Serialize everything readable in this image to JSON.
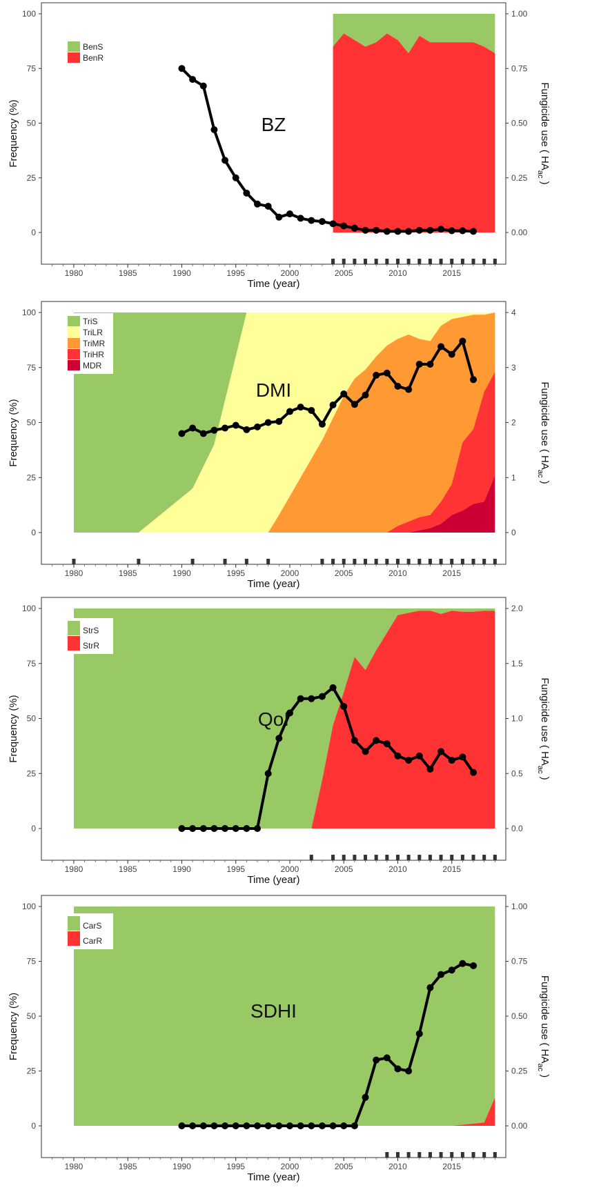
{
  "chart_data": [
    {
      "type": "area",
      "label": "BZ",
      "xlabel": "Time (year)",
      "ylabel": "Frequency (%)",
      "ylabel_right": "Fungicide use ( HA",
      "ylabel_right_sub": "ac",
      "ylabel_right_end": " )",
      "xlim": [
        1977,
        2020
      ],
      "xticks": [
        1980,
        1985,
        1990,
        1995,
        2000,
        2005,
        2010,
        2015
      ],
      "ylim": [
        0,
        100
      ],
      "yticks": [
        0,
        25,
        50,
        75,
        100
      ],
      "ylim_right": [
        0,
        1
      ],
      "yticks_right": [
        "0.00",
        "0.25",
        "0.50",
        "0.75",
        "1.00"
      ],
      "grid": false,
      "legend_position": "top-left",
      "area_series": [
        {
          "name": "BenS",
          "color": "#99c965"
        },
        {
          "name": "BenR",
          "color": "#ff3333"
        }
      ],
      "area_x": [
        2004,
        2005,
        2006,
        2007,
        2008,
        2009,
        2010,
        2011,
        2012,
        2013,
        2014,
        2015,
        2016,
        2017,
        2018,
        2019
      ],
      "area_cumulative": [
        [
          100,
          100,
          100,
          100,
          100,
          100,
          100,
          100,
          100,
          100,
          100,
          100,
          100,
          100,
          100,
          100
        ],
        [
          85,
          91,
          88,
          85,
          87,
          91,
          88,
          82,
          90,
          87,
          87,
          87,
          87,
          87,
          85,
          82
        ]
      ],
      "line": {
        "x": [
          1990,
          1991,
          1992,
          1993,
          1994,
          1995,
          1996,
          1997,
          1998,
          1999,
          2000,
          2001,
          2002,
          2003,
          2004,
          2005,
          2006,
          2007,
          2008,
          2009,
          2010,
          2011,
          2012,
          2013,
          2014,
          2015,
          2016,
          2017
        ],
        "y": [
          0.75,
          0.7,
          0.67,
          0.47,
          0.33,
          0.25,
          0.18,
          0.13,
          0.12,
          0.07,
          0.085,
          0.065,
          0.055,
          0.05,
          0.04,
          0.03,
          0.02,
          0.01,
          0.01,
          0.005,
          0.005,
          0.005,
          0.01,
          0.01,
          0.015,
          0.008,
          0.008,
          0.005
        ]
      },
      "rug_x": [
        2004,
        2005,
        2006,
        2007,
        2008,
        2009,
        2010,
        2011,
        2012,
        2013,
        2014,
        2015,
        2016,
        2017,
        2018,
        2019
      ]
    },
    {
      "type": "area",
      "label": "DMI",
      "xlabel": "Time (year)",
      "ylabel": "Frequency (%)",
      "ylabel_right": "Fungicide use ( HA",
      "ylabel_right_sub": "ac",
      "ylabel_right_end": " )",
      "xlim": [
        1977,
        2020
      ],
      "xticks": [
        1980,
        1985,
        1990,
        1995,
        2000,
        2005,
        2010,
        2015
      ],
      "ylim": [
        0,
        100
      ],
      "yticks": [
        0,
        25,
        50,
        75,
        100
      ],
      "ylim_right": [
        0,
        4
      ],
      "yticks_right": [
        "0",
        "1",
        "2",
        "3",
        "4"
      ],
      "grid": false,
      "legend_position": "top-left",
      "area_series": [
        {
          "name": "TriS",
          "color": "#99c965"
        },
        {
          "name": "TriLR",
          "color": "#ffff99"
        },
        {
          "name": "TriMR",
          "color": "#ff9933"
        },
        {
          "name": "TriHR",
          "color": "#ff3333"
        },
        {
          "name": "MDR",
          "color": "#cc0033"
        }
      ],
      "area_x": [
        1980,
        1986,
        1991,
        1993,
        1996,
        1998,
        1999,
        2001,
        2003,
        2005,
        2006,
        2007,
        2008,
        2009,
        2010,
        2011,
        2012,
        2013,
        2014,
        2015,
        2016,
        2017,
        2018,
        2019
      ],
      "area_cumulative": [
        [
          100,
          100,
          100,
          100,
          100,
          100,
          100,
          100,
          100,
          100,
          100,
          100,
          100,
          100,
          100,
          100,
          100,
          100,
          100,
          100,
          100,
          100,
          100,
          100
        ],
        [
          0,
          0,
          20,
          40,
          100,
          100,
          100,
          100,
          100,
          100,
          100,
          100,
          100,
          100,
          100,
          100,
          100,
          100,
          100,
          100,
          100,
          100,
          100,
          100
        ],
        [
          0,
          0,
          0,
          0,
          0,
          0,
          8,
          25,
          42,
          62,
          70,
          74,
          80,
          85,
          88,
          90,
          88,
          87,
          94,
          97,
          98,
          99,
          99,
          100
        ],
        [
          0,
          0,
          0,
          0,
          0,
          0,
          0,
          0,
          0,
          0,
          0,
          0,
          0,
          0,
          3,
          5,
          7,
          8,
          14,
          22,
          41,
          47,
          64,
          73
        ],
        [
          0,
          0,
          0,
          0,
          0,
          0,
          0,
          0,
          0,
          0,
          0,
          0,
          0,
          0,
          0,
          0,
          1,
          2,
          4,
          8,
          10,
          13,
          14,
          26
        ]
      ],
      "line": {
        "x": [
          1990,
          1991,
          1992,
          1993,
          1994,
          1995,
          1996,
          1997,
          1998,
          1999,
          2000,
          2001,
          2002,
          2003,
          2004,
          2005,
          2006,
          2007,
          2008,
          2009,
          2010,
          2011,
          2012,
          2013,
          2014,
          2015,
          2016,
          2017
        ],
        "y": [
          1.8,
          1.9,
          1.8,
          1.86,
          1.9,
          1.95,
          1.87,
          1.92,
          2.0,
          2.02,
          2.2,
          2.28,
          2.22,
          1.97,
          2.32,
          2.52,
          2.33,
          2.5,
          2.86,
          2.9,
          2.66,
          2.6,
          3.06,
          3.06,
          3.38,
          3.24,
          3.48,
          2.78
        ]
      },
      "rug_x": [
        1980,
        1986,
        1991,
        1994,
        1996,
        1998,
        2003,
        2004,
        2005,
        2006,
        2007,
        2008,
        2009,
        2010,
        2011,
        2012,
        2013,
        2014,
        2015,
        2016,
        2017,
        2018,
        2019
      ]
    },
    {
      "type": "area",
      "label": "QoI",
      "xlabel": "Time (year)",
      "ylabel": "Frequency (%)",
      "ylabel_right": "Fungicide use ( HA",
      "ylabel_right_sub": "ac",
      "ylabel_right_end": " )",
      "xlim": [
        1977,
        2020
      ],
      "xticks": [
        1980,
        1985,
        1990,
        1995,
        2000,
        2005,
        2010,
        2015
      ],
      "ylim": [
        0,
        100
      ],
      "yticks": [
        0,
        25,
        50,
        75,
        100
      ],
      "ylim_right": [
        0,
        2
      ],
      "yticks_right": [
        "0.0",
        "0.5",
        "1.0",
        "1.5",
        "2.0"
      ],
      "grid": false,
      "legend_position": "top-left",
      "area_series": [
        {
          "name": "StrS",
          "color": "#99c965"
        },
        {
          "name": "StrR",
          "color": "#ff3333"
        }
      ],
      "area_x": [
        1980,
        2002,
        2003,
        2004,
        2005,
        2006,
        2007,
        2008,
        2009,
        2010,
        2011,
        2012,
        2013,
        2014,
        2015,
        2016,
        2017,
        2018,
        2019
      ],
      "area_cumulative": [
        [
          100,
          100,
          100,
          100,
          100,
          100,
          100,
          100,
          100,
          100,
          100,
          100,
          100,
          100,
          100,
          100,
          100,
          100,
          100
        ],
        [
          0,
          0,
          22,
          47,
          62,
          78,
          72,
          81,
          89,
          97,
          98,
          99,
          99,
          97.5,
          99,
          98.5,
          98.5,
          99,
          99
        ]
      ],
      "line": {
        "x": [
          1990,
          1991,
          1992,
          1993,
          1994,
          1995,
          1996,
          1997,
          1998,
          1999,
          2000,
          2001,
          2002,
          2003,
          2004,
          2005,
          2006,
          2007,
          2008,
          2009,
          2010,
          2011,
          2012,
          2013,
          2014,
          2015,
          2016,
          2017
        ],
        "y": [
          0,
          0,
          0,
          0,
          0,
          0,
          0,
          0,
          0.5,
          0.82,
          1.05,
          1.18,
          1.18,
          1.2,
          1.28,
          1.11,
          0.8,
          0.7,
          0.8,
          0.77,
          0.66,
          0.62,
          0.66,
          0.54,
          0.7,
          0.62,
          0.65,
          0.51
        ]
      },
      "rug_x": [
        2002,
        2004,
        2005,
        2006,
        2007,
        2008,
        2009,
        2010,
        2011,
        2012,
        2013,
        2014,
        2015,
        2016,
        2017,
        2018,
        2019
      ]
    },
    {
      "type": "area",
      "label": "SDHI",
      "xlabel": "Time (year)",
      "ylabel": "Frequency (%)",
      "ylabel_right": "Fungicide use ( HA",
      "ylabel_right_sub": "ac",
      "ylabel_right_end": " )",
      "xlim": [
        1977,
        2020
      ],
      "xticks": [
        1980,
        1985,
        1990,
        1995,
        2000,
        2005,
        2010,
        2015
      ],
      "ylim": [
        0,
        100
      ],
      "yticks": [
        0,
        25,
        50,
        75,
        100
      ],
      "ylim_right": [
        0,
        1
      ],
      "yticks_right": [
        "0.00",
        "0.25",
        "0.50",
        "0.75",
        "1.00"
      ],
      "grid": false,
      "legend_position": "top-left",
      "area_series": [
        {
          "name": "CarS",
          "color": "#99c965"
        },
        {
          "name": "CarR",
          "color": "#ff3333"
        }
      ],
      "area_x": [
        1980,
        2015,
        2016,
        2017,
        2018,
        2019
      ],
      "area_cumulative": [
        [
          100,
          100,
          100,
          100,
          100,
          100
        ],
        [
          0,
          0,
          0.5,
          1,
          1.5,
          13
        ]
      ],
      "line": {
        "x": [
          1990,
          1991,
          1992,
          1993,
          1994,
          1995,
          1996,
          1997,
          1998,
          1999,
          2000,
          2001,
          2002,
          2003,
          2004,
          2005,
          2006,
          2007,
          2008,
          2009,
          2010,
          2011,
          2012,
          2013,
          2014,
          2015,
          2016,
          2017
        ],
        "y": [
          0,
          0,
          0,
          0,
          0,
          0,
          0,
          0,
          0,
          0,
          0,
          0,
          0,
          0,
          0,
          0,
          0,
          0.13,
          0.3,
          0.31,
          0.26,
          0.25,
          0.42,
          0.63,
          0.69,
          0.71,
          0.74,
          0.73
        ]
      },
      "rug_x": [
        2009,
        2010,
        2011,
        2012,
        2013,
        2014,
        2015,
        2016,
        2017,
        2018,
        2019
      ]
    }
  ]
}
